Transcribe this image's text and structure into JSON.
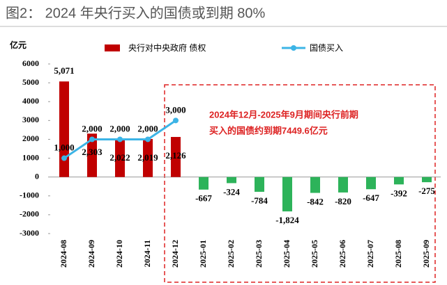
{
  "chart_data": {
    "type": "bar-line",
    "title": "图2： 2024 年央行买入的国债或到期 80%",
    "y_label": "亿元",
    "annotation": [
      "2024年12月-2025年9月期间央行前期",
      "买入的国债约到期7449.6亿元"
    ],
    "categories": [
      "2024-08",
      "2024-09",
      "2024-10",
      "2024-11",
      "2024-12",
      "2025-01",
      "2025-02",
      "2025-03",
      "2025-04",
      "2025-05",
      "2025-06",
      "2025-07",
      "2025-08",
      "2025-09"
    ],
    "series": [
      {
        "name": "央行对中央政府 债权",
        "type": "bar",
        "color": "#c00000",
        "colors": [
          "#c00000",
          "#c00000",
          "#c00000",
          "#c00000",
          "#c00000",
          "#2db35a",
          "#2db35a",
          "#2db35a",
          "#2db35a",
          "#2db35a",
          "#2db35a",
          "#2db35a",
          "#2db35a",
          "#2db35a"
        ],
        "values": [
          5071,
          2303,
          2022,
          2019,
          2126,
          -667,
          -324,
          -784,
          -1824,
          -842,
          -820,
          -647,
          -392,
          -275
        ],
        "value_labels": [
          "5,071",
          "2,303",
          "2,022",
          "2,019",
          "2,126",
          "-667",
          "-324",
          "-784",
          "-1,824",
          "-842",
          "-820",
          "-647",
          "-392",
          "-275"
        ]
      },
      {
        "name": "国债买入",
        "type": "line",
        "color": "#3cb4e6",
        "values": [
          1000,
          2000,
          2000,
          2000,
          3000,
          null,
          null,
          null,
          null,
          null,
          null,
          null,
          null,
          null
        ],
        "value_labels": [
          "1,000",
          "2,000",
          "2,000",
          "2,000",
          "3,000",
          null,
          null,
          null,
          null,
          null,
          null,
          null,
          null,
          null
        ]
      }
    ],
    "ylim": [
      -3000,
      6000
    ],
    "yticks": [
      -3000,
      -2000,
      -1000,
      0,
      1000,
      2000,
      3000,
      4000,
      5000,
      6000
    ]
  }
}
